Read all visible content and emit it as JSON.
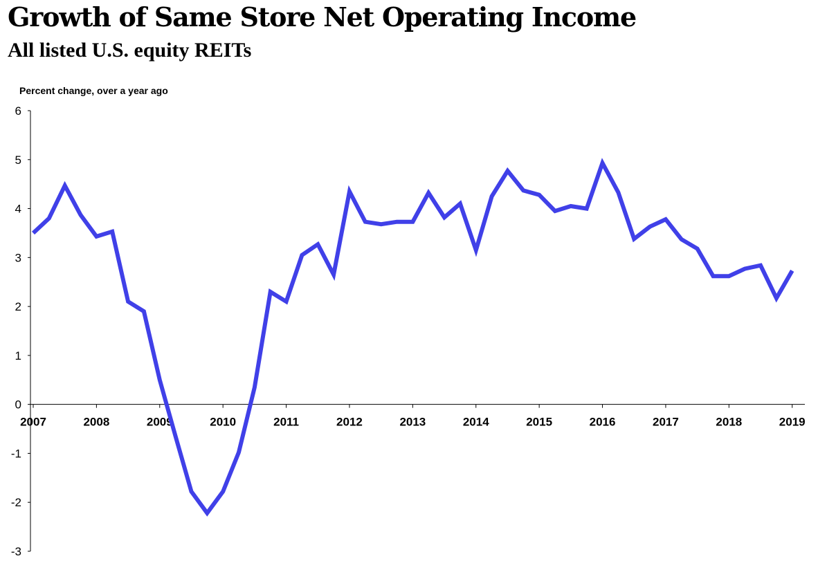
{
  "title": "Growth of Same Store Net Operating Income",
  "subtitle": "All listed U.S. equity REITs",
  "colors": {
    "series": "#4040e8",
    "axis": "#000000"
  },
  "chart_data": {
    "type": "line",
    "ylabel": "Percent change, over a year ago",
    "ylim": [
      -3,
      6
    ],
    "yticks": [
      6,
      5,
      4,
      3,
      2,
      1,
      0,
      -1,
      -2,
      -3
    ],
    "xlim": [
      2007,
      2019.2
    ],
    "xticks": [
      "2007",
      "2008",
      "2009",
      "2010",
      "2011",
      "2012",
      "2013",
      "2014",
      "2015",
      "2016",
      "2017",
      "2018",
      "2019"
    ],
    "grid": false,
    "series": [
      {
        "x": [
          2007.0,
          2007.25,
          2007.5,
          2007.75,
          2008.0,
          2008.25,
          2008.5,
          2008.75,
          2009.0,
          2009.25,
          2009.5,
          2009.75,
          2010.0,
          2010.25,
          2010.5,
          2010.75,
          2011.0,
          2011.25,
          2011.5,
          2011.75,
          2012.0,
          2012.25,
          2012.5,
          2012.75,
          2013.0,
          2013.25,
          2013.5,
          2013.75,
          2014.0,
          2014.25,
          2014.5,
          2014.75,
          2015.0,
          2015.25,
          2015.5,
          2015.75,
          2016.0,
          2016.25,
          2016.5,
          2016.75,
          2017.0,
          2017.25,
          2017.5,
          2017.75,
          2018.0,
          2018.25,
          2018.5,
          2018.75,
          2019.0
        ],
        "values": [
          3.5,
          3.8,
          4.47,
          3.87,
          3.43,
          3.53,
          2.1,
          1.9,
          0.5,
          -0.65,
          -1.78,
          -2.22,
          -1.78,
          -0.98,
          0.35,
          2.3,
          2.1,
          3.05,
          3.27,
          2.65,
          4.35,
          3.73,
          3.68,
          3.73,
          3.73,
          4.32,
          3.82,
          4.1,
          3.15,
          4.25,
          4.77,
          4.37,
          4.28,
          3.95,
          4.05,
          4.0,
          4.93,
          4.33,
          3.38,
          3.63,
          3.78,
          3.37,
          3.18,
          2.62,
          2.62,
          2.77,
          2.84,
          2.17,
          2.73
        ]
      }
    ]
  }
}
